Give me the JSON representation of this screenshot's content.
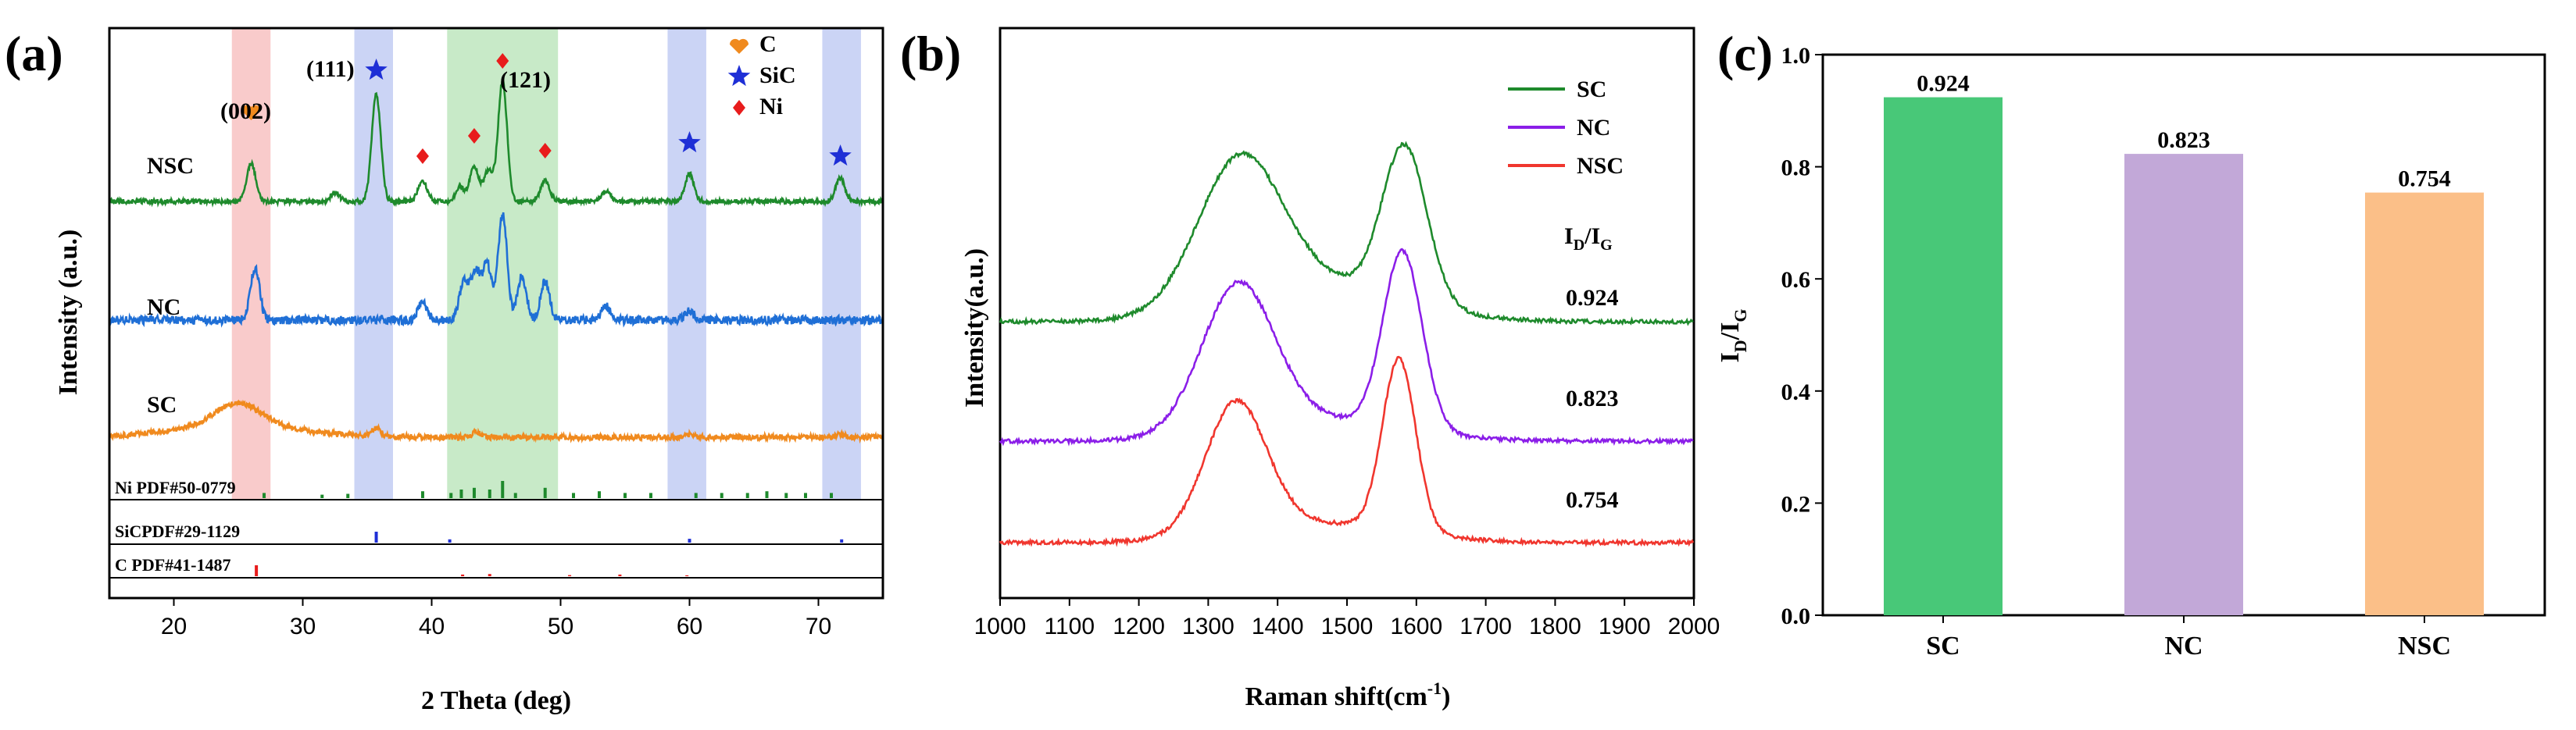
{
  "chart_data": [
    {
      "panel": "(a)",
      "type": "line",
      "xlabel": "2 Theta (deg)",
      "ylabel": "Intensity (a.u.)",
      "xlim": [
        15,
        75
      ],
      "xticks": [
        20,
        30,
        40,
        50,
        60,
        70
      ],
      "series": [
        {
          "name": "NSC",
          "color": "#1e8a2c",
          "peaks": [
            [
              26.0,
              0.22
            ],
            [
              32.5,
              0.05
            ],
            [
              35.7,
              0.62
            ],
            [
              39.3,
              0.12
            ],
            [
              42.2,
              0.08
            ],
            [
              43.3,
              0.2
            ],
            [
              44.4,
              0.18
            ],
            [
              45.5,
              0.7
            ],
            [
              48.8,
              0.12
            ],
            [
              53.5,
              0.06
            ],
            [
              60.0,
              0.16
            ],
            [
              71.7,
              0.14
            ]
          ]
        },
        {
          "name": "NC",
          "color": "#1f6fd6",
          "peaks": [
            [
              26.3,
              0.3
            ],
            [
              39.3,
              0.1
            ],
            [
              42.5,
              0.22
            ],
            [
              43.4,
              0.28
            ],
            [
              44.3,
              0.32
            ],
            [
              45.5,
              0.6
            ],
            [
              47.0,
              0.25
            ],
            [
              48.8,
              0.22
            ],
            [
              53.5,
              0.08
            ],
            [
              60.0,
              0.05
            ]
          ]
        },
        {
          "name": "SC",
          "color": "#f08a1e",
          "peaks": [
            [
              25.0,
              0.16
            ],
            [
              35.7,
              0.06
            ],
            [
              43.5,
              0.04
            ],
            [
              60.0,
              0.02
            ],
            [
              71.7,
              0.02
            ]
          ]
        }
      ],
      "highlight_bands": [
        {
          "range": [
            24.5,
            27.5
          ],
          "color": "#f7b9b9"
        },
        {
          "range": [
            34.0,
            37.0
          ],
          "color": "#b9c6f2"
        },
        {
          "range": [
            41.2,
            49.8
          ],
          "color": "#b5e3b5"
        },
        {
          "range": [
            58.3,
            61.3
          ],
          "color": "#b9c6f2"
        },
        {
          "range": [
            70.3,
            73.3
          ],
          "color": "#b9c6f2"
        }
      ],
      "annotations": [
        {
          "text": "(002)",
          "x": 26.0,
          "marker": "heart",
          "color": "#f08a1e"
        },
        {
          "text": "(111)",
          "x": 35.7,
          "marker": "star",
          "color": "#1e2fd6"
        },
        {
          "text": "(121)",
          "x": 45.5,
          "marker": "diamond",
          "color": "#e81c1c"
        },
        {
          "text": "",
          "x": 39.3,
          "marker": "diamond",
          "color": "#e81c1c"
        },
        {
          "text": "",
          "x": 43.3,
          "marker": "diamond",
          "color": "#e81c1c"
        },
        {
          "text": "",
          "x": 48.8,
          "marker": "diamond",
          "color": "#e81c1c"
        },
        {
          "text": "",
          "x": 60.0,
          "marker": "star",
          "color": "#1e2fd6"
        },
        {
          "text": "",
          "x": 71.7,
          "marker": "star",
          "color": "#1e2fd6"
        }
      ],
      "legend": [
        {
          "label": "C",
          "marker": "heart",
          "color": "#f08a1e"
        },
        {
          "label": "SiC",
          "marker": "star",
          "color": "#1e2fd6"
        },
        {
          "label": "Ni",
          "marker": "diamond",
          "color": "#e81c1c"
        }
      ],
      "reference_patterns": [
        {
          "label": "Ni PDF#50-0779",
          "color": "#1e8a2c",
          "lines": [
            [
              27.0,
              0.3
            ],
            [
              31.5,
              0.2
            ],
            [
              33.5,
              0.25
            ],
            [
              39.3,
              0.4
            ],
            [
              41.5,
              0.3
            ],
            [
              42.3,
              0.5
            ],
            [
              43.3,
              0.6
            ],
            [
              44.5,
              0.5
            ],
            [
              45.5,
              1.0
            ],
            [
              46.5,
              0.3
            ],
            [
              48.8,
              0.6
            ],
            [
              51.0,
              0.3
            ],
            [
              53.0,
              0.4
            ],
            [
              55.0,
              0.3
            ],
            [
              57.0,
              0.3
            ],
            [
              60.5,
              0.3
            ],
            [
              62.5,
              0.3
            ],
            [
              64.5,
              0.3
            ],
            [
              66.0,
              0.4
            ],
            [
              67.5,
              0.3
            ],
            [
              69.0,
              0.3
            ],
            [
              71.0,
              0.3
            ]
          ]
        },
        {
          "label": "SiCPDF#29-1129",
          "color": "#1e2fd6",
          "lines": [
            [
              35.7,
              1.0
            ],
            [
              41.4,
              0.3
            ],
            [
              60.0,
              0.35
            ],
            [
              71.8,
              0.3
            ]
          ]
        },
        {
          "label": "C  PDF#41-1487",
          "color": "#e81c1c",
          "lines": [
            [
              26.4,
              1.0
            ],
            [
              42.4,
              0.15
            ],
            [
              44.5,
              0.2
            ],
            [
              50.7,
              0.1
            ],
            [
              54.6,
              0.15
            ],
            [
              59.8,
              0.08
            ]
          ]
        }
      ]
    },
    {
      "panel": "(b)",
      "type": "line",
      "xlabel": "Raman shift(cm⁻¹)",
      "ylabel": "Intensity(a.u.)",
      "xlim": [
        1000,
        2000
      ],
      "xticks": [
        1000,
        1100,
        1200,
        1300,
        1400,
        1500,
        1600,
        1700,
        1800,
        1900,
        2000
      ],
      "series": [
        {
          "name": "SC",
          "color": "#1e8a2c",
          "id_ig": "0.924",
          "d_peak": [
            1345,
            1.0
          ],
          "g_peak": [
            1583,
            1.08
          ]
        },
        {
          "name": "NC",
          "color": "#8b1ee8",
          "id_ig": "0.823",
          "d_peak": [
            1343,
            1.0
          ],
          "g_peak": [
            1580,
            1.22
          ]
        },
        {
          "name": "NSC",
          "color": "#f0362e",
          "id_ig": "0.754",
          "d_peak": [
            1340,
            1.0
          ],
          "g_peak": [
            1575,
            1.32
          ]
        }
      ],
      "annotation_header": "I_D/I_G"
    },
    {
      "panel": "(c)",
      "type": "bar",
      "ylabel": "I_D/I_G",
      "categories": [
        "SC",
        "NC",
        "NSC"
      ],
      "values": [
        0.924,
        0.823,
        0.754
      ],
      "value_labels": [
        "0.924",
        "0.823",
        "0.754"
      ],
      "colors": [
        "#48c878",
        "#c2a8d8",
        "#fbbf88"
      ],
      "ylim": [
        0.0,
        1.0
      ],
      "yticks": [
        "0.0",
        "0.2",
        "0.4",
        "0.6",
        "0.8",
        "1.0"
      ]
    }
  ],
  "labels": {
    "panel_a": "(a)",
    "panel_b": "(b)",
    "panel_c": "(c)",
    "a_xlabel": "2 Theta (deg)",
    "a_ylabel": "Intensity (a.u.)",
    "a_curve_nsc": "NSC",
    "a_curve_nc": "NC",
    "a_curve_sc": "SC",
    "a_ann_002": "(002)",
    "a_ann_111": "(111)",
    "a_ann_121": "(121)",
    "a_legend_c": "C",
    "a_legend_sic": "SiC",
    "a_legend_ni": "Ni",
    "a_ref_ni": "Ni PDF#50-0779",
    "a_ref_sic": "SiCPDF#29-1129",
    "a_ref_c": "C  PDF#41-1487",
    "b_xlabel_main": "Raman shift(cm",
    "b_xlabel_sup": "-1",
    "b_xlabel_end": ")",
    "b_ylabel": "Intensity(a.u.)",
    "b_legend_sc": "SC",
    "b_legend_nc": "NC",
    "b_legend_nsc": "NSC",
    "b_ratio_I": "I",
    "b_ratio_D": "D",
    "b_ratio_slash": "/I",
    "b_ratio_G": "G",
    "b_val_sc": "0.924",
    "b_val_nc": "0.823",
    "b_val_nsc": "0.754",
    "c_ylabel_I": "I",
    "c_ylabel_D": "D",
    "c_ylabel_slash": "/I",
    "c_ylabel_G": "G"
  }
}
